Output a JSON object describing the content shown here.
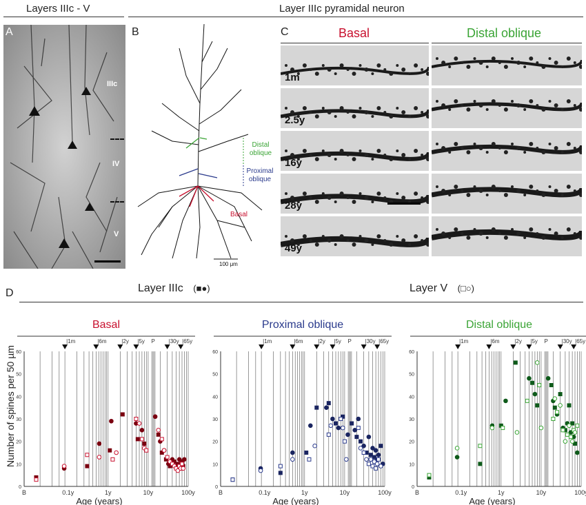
{
  "headers": {
    "layers_title": "Layers IIIc - V",
    "neuron_title": "Layer IIIc pyramidal neuron",
    "layer3_title": "Layer IIIc",
    "layer3_symbols": "(■●)",
    "layer5_title": "Layer V",
    "layer5_symbols": "(□○)"
  },
  "panels": {
    "a": "A",
    "b": "B",
    "c": "C",
    "d": "D"
  },
  "panel_a": {
    "layer_labels": [
      "IIIc",
      "IV",
      "V"
    ]
  },
  "panel_b": {
    "distal_label": "Distal oblique",
    "proximal_label": "Proximal oblique",
    "basal_label": "Basal",
    "scale_label": "100 μm"
  },
  "panel_c": {
    "col_basal": "Basal",
    "col_distal": "Distal oblique",
    "ages": [
      "1m",
      "2.5y",
      "16y",
      "28y",
      "49y"
    ]
  },
  "colors": {
    "basal": "#c8102e",
    "proximal": "#2a3a8c",
    "distal": "#3aa435",
    "basal_dark": "#7a0010",
    "proximal_dark": "#1a2560",
    "distal_dark": "#0e5a1a"
  },
  "chart_data": [
    {
      "type": "scatter",
      "title": "Basal",
      "xlabel": "Age (years)",
      "ylabel": "Number of spines per 50 µm",
      "x_scale": "log",
      "ylim": [
        0,
        60
      ],
      "y_ticks": [
        0,
        10,
        20,
        30,
        40,
        50,
        60
      ],
      "x_tick_labels": [
        "B",
        "0.1y",
        "1y",
        "10y",
        "100y"
      ],
      "top_markers": [
        "1m",
        "6m",
        "2y",
        "5y",
        "P",
        "30y",
        "65y"
      ],
      "series": [
        {
          "name": "Layer IIIc",
          "points": [
            [
              0.016,
              4
            ],
            [
              0.08,
              8
            ],
            [
              0.3,
              9
            ],
            [
              0.6,
              19
            ],
            [
              1.1,
              16
            ],
            [
              1.2,
              29
            ],
            [
              2.3,
              32
            ],
            [
              5,
              28
            ],
            [
              5.5,
              21
            ],
            [
              7,
              25
            ],
            [
              8,
              19
            ],
            [
              15,
              31
            ],
            [
              18,
              23
            ],
            [
              20,
              20
            ],
            [
              22,
              15
            ],
            [
              25,
              16
            ],
            [
              28,
              12
            ],
            [
              32,
              10
            ],
            [
              35,
              9
            ],
            [
              40,
              12
            ],
            [
              45,
              11
            ],
            [
              50,
              9
            ],
            [
              55,
              10
            ],
            [
              60,
              12
            ],
            [
              65,
              8
            ],
            [
              70,
              11
            ],
            [
              75,
              9
            ],
            [
              80,
              12
            ]
          ]
        },
        {
          "name": "Layer V",
          "points": [
            [
              0.016,
              3
            ],
            [
              0.08,
              9
            ],
            [
              0.3,
              14
            ],
            [
              0.6,
              13
            ],
            [
              1.3,
              12
            ],
            [
              1.6,
              15
            ],
            [
              5,
              30
            ],
            [
              6,
              28
            ],
            [
              7,
              21
            ],
            [
              8,
              17
            ],
            [
              9,
              16
            ],
            [
              18,
              25
            ],
            [
              22,
              21
            ],
            [
              25,
              16
            ],
            [
              30,
              13
            ],
            [
              35,
              11
            ],
            [
              40,
              10
            ],
            [
              45,
              9
            ],
            [
              50,
              8
            ],
            [
              55,
              7
            ],
            [
              60,
              9
            ],
            [
              65,
              8
            ],
            [
              70,
              10
            ],
            [
              75,
              8
            ]
          ]
        }
      ]
    },
    {
      "type": "scatter",
      "title": "Proximal oblique",
      "xlabel": "Age (years)",
      "ylabel": "",
      "x_scale": "log",
      "ylim": [
        0,
        60
      ],
      "y_ticks": [
        0,
        10,
        20,
        30,
        40,
        50,
        60
      ],
      "x_tick_labels": [
        "B",
        "0.1y",
        "1y",
        "10y",
        "100y"
      ],
      "top_markers": [
        "1m",
        "6m",
        "2y",
        "5y",
        "P",
        "30y",
        "65y"
      ],
      "series": [
        {
          "name": "Layer IIIc",
          "points": [
            [
              0.016,
              3
            ],
            [
              0.08,
              8
            ],
            [
              0.25,
              6
            ],
            [
              0.5,
              15
            ],
            [
              1.1,
              15
            ],
            [
              1.4,
              27
            ],
            [
              2,
              35
            ],
            [
              3.5,
              35
            ],
            [
              4,
              37
            ],
            [
              5,
              30
            ],
            [
              6,
              28
            ],
            [
              7,
              26
            ],
            [
              9,
              31
            ],
            [
              12,
              23
            ],
            [
              15,
              28
            ],
            [
              18,
              25
            ],
            [
              20,
              22
            ],
            [
              22,
              30
            ],
            [
              25,
              20
            ],
            [
              30,
              18
            ],
            [
              35,
              15
            ],
            [
              40,
              22
            ],
            [
              45,
              14
            ],
            [
              50,
              17
            ],
            [
              55,
              13
            ],
            [
              60,
              16
            ],
            [
              65,
              12
            ],
            [
              70,
              14
            ],
            [
              80,
              18
            ],
            [
              90,
              10
            ]
          ]
        },
        {
          "name": "Layer V",
          "points": [
            [
              0.016,
              3
            ],
            [
              0.08,
              7
            ],
            [
              0.25,
              9
            ],
            [
              0.5,
              12
            ],
            [
              1.3,
              12
            ],
            [
              1.8,
              18
            ],
            [
              4,
              23
            ],
            [
              4.5,
              27
            ],
            [
              8,
              30
            ],
            [
              9,
              26
            ],
            [
              10,
              20
            ],
            [
              11,
              12
            ],
            [
              22,
              26
            ],
            [
              25,
              17
            ],
            [
              30,
              15
            ],
            [
              35,
              12
            ],
            [
              40,
              10
            ],
            [
              45,
              12
            ],
            [
              50,
              9
            ],
            [
              55,
              11
            ],
            [
              60,
              8
            ],
            [
              65,
              10
            ],
            [
              70,
              12
            ],
            [
              80,
              9
            ]
          ]
        }
      ]
    },
    {
      "type": "scatter",
      "title": "Distal oblique",
      "xlabel": "Age (years)",
      "ylabel": "",
      "x_scale": "log",
      "ylim": [
        0,
        60
      ],
      "y_ticks": [
        0,
        10,
        20,
        30,
        40,
        50,
        60
      ],
      "x_tick_labels": [
        "B",
        "0.1y",
        "1y",
        "10y",
        "100y"
      ],
      "top_markers": [
        "1m",
        "6m",
        "2y",
        "5y",
        "P",
        "30y",
        "65y"
      ],
      "series": [
        {
          "name": "Layer IIIc",
          "points": [
            [
              0.016,
              4
            ],
            [
              0.08,
              13
            ],
            [
              0.3,
              10
            ],
            [
              0.6,
              27
            ],
            [
              1,
              27
            ],
            [
              1.3,
              38
            ],
            [
              2.3,
              55
            ],
            [
              5,
              48
            ],
            [
              6,
              46
            ],
            [
              7,
              41
            ],
            [
              8,
              36
            ],
            [
              15,
              48
            ],
            [
              18,
              45
            ],
            [
              20,
              38
            ],
            [
              22,
              35
            ],
            [
              25,
              32
            ],
            [
              30,
              41
            ],
            [
              35,
              26
            ],
            [
              40,
              25
            ],
            [
              45,
              28
            ],
            [
              50,
              36
            ],
            [
              55,
              24
            ],
            [
              60,
              28
            ],
            [
              65,
              22
            ],
            [
              70,
              19
            ],
            [
              80,
              15
            ]
          ]
        },
        {
          "name": "Layer V",
          "points": [
            [
              0.016,
              5
            ],
            [
              0.08,
              17
            ],
            [
              0.3,
              18
            ],
            [
              0.6,
              26
            ],
            [
              1.1,
              26
            ],
            [
              2.5,
              24
            ],
            [
              4.5,
              38
            ],
            [
              8,
              55
            ],
            [
              9,
              45
            ],
            [
              10,
              26
            ],
            [
              20,
              30
            ],
            [
              22,
              39
            ],
            [
              25,
              33
            ],
            [
              30,
              36
            ],
            [
              35,
              25
            ],
            [
              40,
              20
            ],
            [
              45,
              23
            ],
            [
              50,
              27
            ],
            [
              55,
              22
            ],
            [
              60,
              20
            ],
            [
              65,
              25
            ],
            [
              70,
              24
            ],
            [
              80,
              27
            ]
          ]
        }
      ]
    }
  ]
}
